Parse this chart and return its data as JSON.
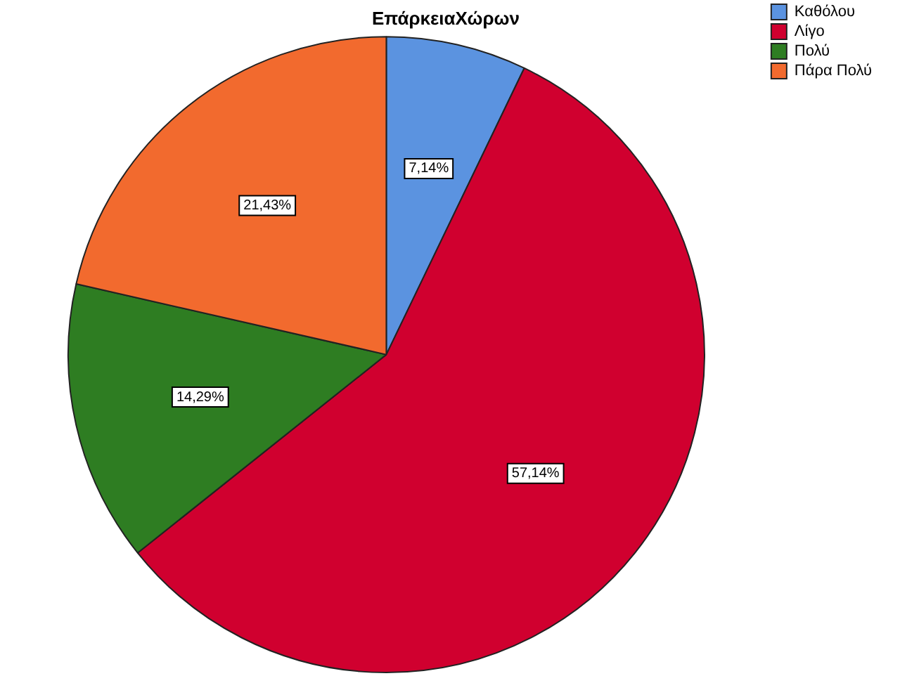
{
  "chart_data": {
    "type": "pie",
    "title": "ΕπάρκειαΧώρων",
    "categories": [
      "Καθόλου",
      "Λίγο",
      "Πολύ",
      "Πάρα Πολύ"
    ],
    "values": [
      7.14,
      57.14,
      14.29,
      21.43
    ],
    "colors": [
      "#5b93e0",
      "#d0002f",
      "#2e7d22",
      "#f26a2e"
    ],
    "value_labels": [
      "7,14%",
      "57,14%",
      "14,29%",
      "21,43%"
    ],
    "legend": "top right"
  }
}
